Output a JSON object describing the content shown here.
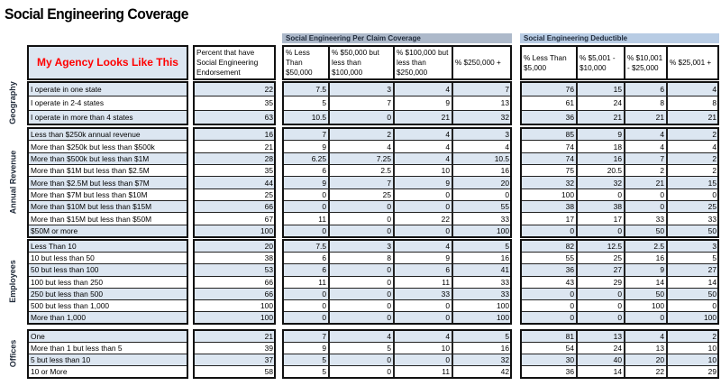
{
  "title": "Social Engineering Coverage",
  "agency_label": "My Agency Looks Like This",
  "colors": {
    "row_shade": "#dce6f1",
    "agency_label": "#ff0000",
    "coverage_band": "#adb9ca",
    "deductible_band": "#b8cce4"
  },
  "bands": {
    "coverage": "Social Engineering Per Claim Coverage",
    "deductible": "Social Engineering Deductible"
  },
  "headers": {
    "endorsement": "Percent that have Social Engineering Endorsement",
    "coverage": [
      "% Less Than $50,000",
      "% $50,000 but less than $100,000",
      "% $100,000 but less than $250,000",
      "% $250,000 +"
    ],
    "deductible": [
      "% Less Than $5,000",
      "% $5,001 - $10,000",
      "% $10,001 - $25,000",
      "% $25,001 +"
    ]
  },
  "sections": [
    {
      "name": "Geography",
      "rows": [
        {
          "label": "I operate in one state",
          "endorsement": "22",
          "coverage": [
            "7.5",
            "3",
            "4",
            "7"
          ],
          "deductible": [
            "76",
            "15",
            "6",
            "4"
          ]
        },
        {
          "label": "I operate in 2-4 states",
          "endorsement": "35",
          "coverage": [
            "5",
            "7",
            "9",
            "13"
          ],
          "deductible": [
            "61",
            "24",
            "8",
            "8"
          ]
        },
        {
          "label": "I operate in more than 4 states",
          "endorsement": "63",
          "coverage": [
            "10.5",
            "0",
            "21",
            "32"
          ],
          "deductible": [
            "36",
            "21",
            "21",
            "21"
          ]
        }
      ]
    },
    {
      "name": "Annual Revenue",
      "rows": [
        {
          "label": "Less than $250k annual revenue",
          "endorsement": "16",
          "coverage": [
            "7",
            "2",
            "4",
            "3"
          ],
          "deductible": [
            "85",
            "9",
            "4",
            "2"
          ]
        },
        {
          "label": "More than $250k but less than $500k",
          "endorsement": "21",
          "coverage": [
            "9",
            "4",
            "4",
            "4"
          ],
          "deductible": [
            "74",
            "18",
            "4",
            "4"
          ]
        },
        {
          "label": "More than $500k but less than $1M",
          "endorsement": "28",
          "coverage": [
            "6.25",
            "7.25",
            "4",
            "10.5"
          ],
          "deductible": [
            "74",
            "16",
            "7",
            "2"
          ]
        },
        {
          "label": "More than $1M but less than $2.5M",
          "endorsement": "35",
          "coverage": [
            "6",
            "2.5",
            "10",
            "16"
          ],
          "deductible": [
            "75",
            "20.5",
            "2",
            "2"
          ]
        },
        {
          "label": "More than $2.5M but less than $7M",
          "endorsement": "44",
          "coverage": [
            "9",
            "7",
            "9",
            "20"
          ],
          "deductible": [
            "32",
            "32",
            "21",
            "15"
          ]
        },
        {
          "label": "More than $7M but less than $10M",
          "endorsement": "25",
          "coverage": [
            "0",
            "25",
            "0",
            "0"
          ],
          "deductible": [
            "100",
            "0",
            "0",
            "0"
          ]
        },
        {
          "label": "More than $10M but less than $15M",
          "endorsement": "66",
          "coverage": [
            "0",
            "0",
            "0",
            "55"
          ],
          "deductible": [
            "38",
            "38",
            "0",
            "25"
          ]
        },
        {
          "label": "More than $15M but less than $50M",
          "endorsement": "67",
          "coverage": [
            "11",
            "0",
            "22",
            "33"
          ],
          "deductible": [
            "17",
            "17",
            "33",
            "33"
          ]
        },
        {
          "label": "$50M or more",
          "endorsement": "100",
          "coverage": [
            "0",
            "0",
            "0",
            "100"
          ],
          "deductible": [
            "0",
            "0",
            "50",
            "50"
          ]
        }
      ]
    },
    {
      "name": "Employees",
      "rows": [
        {
          "label": "Less Than 10",
          "endorsement": "20",
          "coverage": [
            "7.5",
            "3",
            "4",
            "5"
          ],
          "deductible": [
            "82",
            "12.5",
            "2.5",
            "3"
          ]
        },
        {
          "label": "10 but less than 50",
          "endorsement": "38",
          "coverage": [
            "6",
            "8",
            "9",
            "16"
          ],
          "deductible": [
            "55",
            "25",
            "16",
            "5"
          ]
        },
        {
          "label": "50 but less than 100",
          "endorsement": "53",
          "coverage": [
            "6",
            "0",
            "6",
            "41"
          ],
          "deductible": [
            "36",
            "27",
            "9",
            "27"
          ]
        },
        {
          "label": "100 but less than 250",
          "endorsement": "66",
          "coverage": [
            "11",
            "0",
            "11",
            "33"
          ],
          "deductible": [
            "43",
            "29",
            "14",
            "14"
          ]
        },
        {
          "label": "250 but less than 500",
          "endorsement": "66",
          "coverage": [
            "0",
            "0",
            "33",
            "33"
          ],
          "deductible": [
            "0",
            "0",
            "50",
            "50"
          ]
        },
        {
          "label": "500 but less than 1,000",
          "endorsement": "100",
          "coverage": [
            "0",
            "0",
            "0",
            "100"
          ],
          "deductible": [
            "0",
            "0",
            "100",
            "0"
          ]
        },
        {
          "label": "More than 1,000",
          "endorsement": "100",
          "coverage": [
            "0",
            "0",
            "0",
            "100"
          ],
          "deductible": [
            "0",
            "0",
            "0",
            "100"
          ]
        }
      ]
    },
    {
      "name": "Offices",
      "rows": [
        {
          "label": "One",
          "endorsement": "21",
          "coverage": [
            "7",
            "4",
            "4",
            "5"
          ],
          "deductible": [
            "81",
            "13",
            "4",
            "2"
          ]
        },
        {
          "label": "More than 1 but less than 5",
          "endorsement": "39",
          "coverage": [
            "9",
            "5",
            "10",
            "16"
          ],
          "deductible": [
            "54",
            "24",
            "13",
            "10"
          ]
        },
        {
          "label": "5 but less than 10",
          "endorsement": "37",
          "coverage": [
            "5",
            "0",
            "0",
            "32"
          ],
          "deductible": [
            "30",
            "40",
            "20",
            "10"
          ]
        },
        {
          "label": "10 or More",
          "endorsement": "58",
          "coverage": [
            "5",
            "0",
            "11",
            "42"
          ],
          "deductible": [
            "36",
            "14",
            "22",
            "29"
          ]
        }
      ]
    }
  ]
}
